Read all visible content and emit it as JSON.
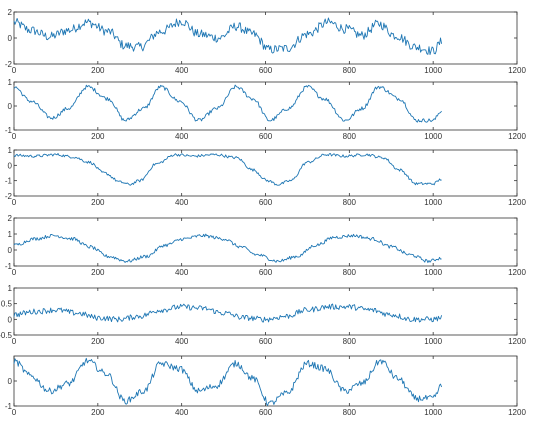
{
  "chart_data": [
    {
      "type": "line",
      "title": "",
      "xlabel": "",
      "ylabel": "",
      "xlim": [
        0,
        1200
      ],
      "ylim": [
        -2,
        2
      ],
      "xticks": [
        0,
        200,
        400,
        600,
        800,
        1000,
        1200
      ],
      "yticks": [
        -2,
        0,
        2
      ],
      "grid": false,
      "color": "#1f77b4",
      "series": [
        {
          "x": [
            0,
            40,
            85,
            130,
            175,
            225,
            265,
            300,
            350,
            400,
            440,
            490,
            530,
            570,
            610,
            650,
            700,
            750,
            790,
            830,
            870,
            910,
            960,
            1000,
            1020
          ],
          "y": [
            1.2,
            0.6,
            0.1,
            0.6,
            1.2,
            0.5,
            -0.6,
            -0.7,
            0.5,
            1.3,
            0.3,
            0.0,
            0.9,
            0.3,
            -0.9,
            -0.8,
            0.3,
            1.2,
            0.7,
            0.2,
            1.1,
            0.2,
            -0.7,
            -1.0,
            -0.3
          ]
        }
      ]
    },
    {
      "type": "line",
      "title": "",
      "xlabel": "",
      "ylabel": "",
      "xlim": [
        0,
        1200
      ],
      "ylim": [
        -1,
        1
      ],
      "xticks": [
        0,
        200,
        400,
        600,
        800,
        1000,
        1200
      ],
      "yticks": [
        -1,
        0,
        1
      ],
      "grid": false,
      "color": "#1f77b4",
      "series": [
        {
          "x": [
            0,
            40,
            90,
            130,
            175,
            225,
            265,
            310,
            350,
            395,
            440,
            485,
            530,
            570,
            610,
            655,
            700,
            740,
            790,
            830,
            870,
            920,
            960,
            1000,
            1020
          ],
          "y": [
            0.8,
            0.2,
            -0.5,
            -0.1,
            0.8,
            0.3,
            -0.6,
            -0.1,
            0.8,
            0.2,
            -0.6,
            -0.1,
            0.8,
            0.3,
            -0.6,
            -0.1,
            0.8,
            0.3,
            -0.6,
            -0.1,
            0.8,
            0.3,
            -0.6,
            -0.6,
            -0.2
          ]
        }
      ]
    },
    {
      "type": "line",
      "title": "",
      "xlabel": "",
      "ylabel": "",
      "xlim": [
        0,
        1200
      ],
      "ylim": [
        -2,
        1
      ],
      "xticks": [
        0,
        200,
        400,
        600,
        800,
        1000,
        1200
      ],
      "yticks": [
        -2,
        -1,
        0,
        1
      ],
      "grid": false,
      "color": "#1f77b4",
      "series": [
        {
          "x": [
            0,
            50,
            100,
            140,
            180,
            215,
            255,
            275,
            300,
            340,
            385,
            430,
            480,
            530,
            570,
            605,
            630,
            660,
            700,
            745,
            790,
            840,
            880,
            920,
            960,
            1000,
            1020
          ],
          "y": [
            0.65,
            0.6,
            0.7,
            0.55,
            0.2,
            -0.5,
            -1.1,
            -1.25,
            -1.0,
            0.1,
            0.7,
            0.6,
            0.7,
            0.5,
            -0.3,
            -1.0,
            -1.25,
            -1.0,
            0.2,
            0.7,
            0.6,
            0.7,
            0.5,
            -0.3,
            -1.2,
            -1.2,
            -0.9
          ]
        }
      ]
    },
    {
      "type": "line",
      "title": "",
      "xlabel": "",
      "ylabel": "",
      "xlim": [
        0,
        1200
      ],
      "ylim": [
        -1,
        2
      ],
      "xticks": [
        0,
        200,
        400,
        600,
        800,
        1000,
        1200
      ],
      "yticks": [
        -1,
        0,
        1,
        2
      ],
      "grid": false,
      "color": "#1f77b4",
      "series": [
        {
          "x": [
            0,
            50,
            95,
            140,
            180,
            225,
            270,
            315,
            360,
            405,
            450,
            500,
            540,
            580,
            630,
            675,
            720,
            765,
            810,
            855,
            900,
            945,
            990,
            1020
          ],
          "y": [
            0.3,
            0.7,
            0.9,
            0.7,
            0.2,
            -0.4,
            -0.7,
            -0.4,
            0.3,
            0.7,
            0.9,
            0.7,
            0.2,
            -0.3,
            -0.7,
            -0.4,
            0.3,
            0.8,
            0.9,
            0.7,
            0.2,
            -0.3,
            -0.7,
            -0.5
          ]
        }
      ]
    },
    {
      "type": "line",
      "title": "",
      "xlabel": "",
      "ylabel": "",
      "xlim": [
        0,
        1200
      ],
      "ylim": [
        -0.5,
        1
      ],
      "xticks": [
        0,
        200,
        400,
        600,
        800,
        1000,
        1200
      ],
      "yticks": [
        -0.5,
        0,
        0.5,
        1
      ],
      "grid": false,
      "color": "#1f77b4",
      "series": [
        {
          "x": [
            0,
            50,
            100,
            150,
            200,
            250,
            300,
            350,
            400,
            450,
            500,
            550,
            600,
            650,
            700,
            750,
            800,
            850,
            900,
            950,
            1000,
            1020
          ],
          "y": [
            0.15,
            0.25,
            0.3,
            0.2,
            0.05,
            0.0,
            0.1,
            0.3,
            0.4,
            0.35,
            0.2,
            0.05,
            0.0,
            0.1,
            0.3,
            0.4,
            0.4,
            0.3,
            0.15,
            0.0,
            0.0,
            0.05
          ]
        }
      ]
    },
    {
      "type": "line",
      "title": "",
      "xlabel": "",
      "ylabel": "",
      "xlim": [
        0,
        1200
      ],
      "ylim": [
        -1,
        1
      ],
      "xticks": [
        0,
        200,
        400,
        600,
        800,
        1000,
        1200
      ],
      "yticks": [
        -1,
        0
      ],
      "grid": false,
      "color": "#1f77b4",
      "series": [
        {
          "x": [
            0,
            40,
            85,
            130,
            175,
            220,
            265,
            310,
            350,
            395,
            440,
            480,
            530,
            570,
            610,
            650,
            700,
            740,
            790,
            830,
            875,
            915,
            960,
            1000,
            1020
          ],
          "y": [
            0.8,
            0.2,
            -0.4,
            -0.1,
            0.8,
            0.3,
            -0.8,
            -0.4,
            0.7,
            0.5,
            -0.4,
            -0.2,
            0.7,
            0.1,
            -0.9,
            -0.5,
            0.7,
            0.5,
            -0.4,
            -0.1,
            0.8,
            0.1,
            -0.7,
            -0.7,
            -0.2
          ]
        }
      ]
    }
  ]
}
